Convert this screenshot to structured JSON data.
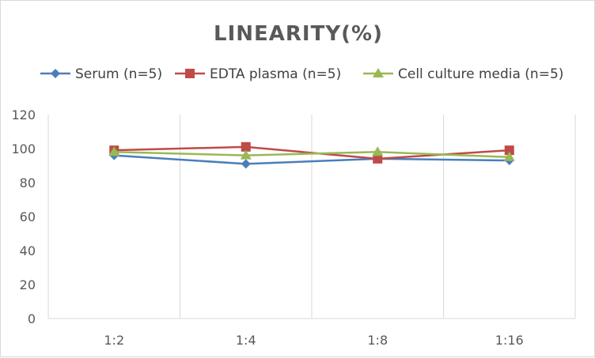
{
  "chart_data": {
    "type": "line",
    "title": "LINEARITY(%)",
    "categories": [
      "1:2",
      "1:4",
      "1:8",
      "1:16"
    ],
    "series": [
      {
        "name": "Serum (n=5)",
        "values": [
          96,
          91,
          94,
          93
        ],
        "color": "#4a7ebb",
        "marker": "diamond"
      },
      {
        "name": "EDTA plasma (n=5)",
        "values": [
          99,
          101,
          94,
          99
        ],
        "color": "#be4b48",
        "marker": "square"
      },
      {
        "name": "Cell culture media (n=5)",
        "values": [
          98,
          96,
          98,
          95
        ],
        "color": "#98b954",
        "marker": "triangle"
      }
    ],
    "ylim": [
      0,
      120
    ],
    "yticks": [
      0,
      20,
      40,
      60,
      80,
      100,
      120
    ],
    "xlabel": "",
    "ylabel": "",
    "grid": "vertical",
    "legend": "top"
  }
}
